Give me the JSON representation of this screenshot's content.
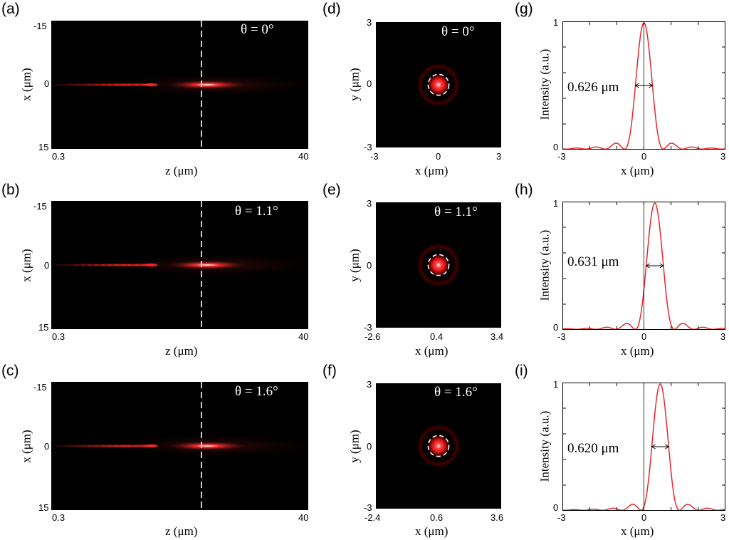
{
  "panels": {
    "a": {
      "letter": "(a)",
      "angle": "θ = 0°",
      "xtick_left": "0.3",
      "xtick_right": "40",
      "ytick_top": "-15",
      "ytick_mid": "0",
      "ytick_bot": "15",
      "xlabel": "z (μm)",
      "ylabel": "x (μm)"
    },
    "b": {
      "letter": "(b)",
      "angle": "θ = 1.1°",
      "xtick_left": "0.3",
      "xtick_right": "40",
      "ytick_top": "-15",
      "ytick_mid": "0",
      "ytick_bot": "15",
      "xlabel": "z (μm)",
      "ylabel": "x (μm)"
    },
    "c": {
      "letter": "(c)",
      "angle": "θ = 1.6°",
      "xtick_left": "0.3",
      "xtick_right": "40",
      "ytick_top": "-15",
      "ytick_mid": "0",
      "ytick_bot": "15",
      "xlabel": "z (μm)",
      "ylabel": "x (μm)"
    },
    "d": {
      "letter": "(d)",
      "angle": "θ = 0°",
      "xticks": [
        "-3",
        "0",
        "3"
      ],
      "yticks": [
        "3",
        "0",
        "-3"
      ],
      "xlabel": "x (μm)",
      "ylabel": "y (μm)"
    },
    "e": {
      "letter": "(e)",
      "angle": "θ = 1.1°",
      "xticks": [
        "-2.6",
        "0.4",
        "3.4"
      ],
      "yticks": [
        "3",
        "0",
        "-3"
      ],
      "xlabel": "x (μm)",
      "ylabel": "y (μm)"
    },
    "f": {
      "letter": "(f)",
      "angle": "θ = 1.6°",
      "xticks": [
        "-2.4",
        "0.6",
        "3.6"
      ],
      "yticks": [
        "3",
        "0",
        "-3"
      ],
      "xlabel": "x (μm)",
      "ylabel": "y (μm)"
    },
    "g": {
      "letter": "(g)",
      "fwhm": "0.626 μm",
      "xticks": [
        "-3",
        "0",
        "3"
      ],
      "yticks": [
        "1",
        "0"
      ],
      "xlabel": "x (μm)",
      "ylabel": "Intensity (a.u.)"
    },
    "h": {
      "letter": "(h)",
      "fwhm": "0.631 μm",
      "xticks": [
        "-3",
        "0",
        "3"
      ],
      "yticks": [
        "1",
        "0"
      ],
      "xlabel": "x (μm)",
      "ylabel": "Intensity (a.u.)"
    },
    "i": {
      "letter": "(i)",
      "fwhm": "0.620 μm",
      "xticks": [
        "-3",
        "0",
        "3"
      ],
      "yticks": [
        "1",
        "0"
      ],
      "xlabel": "x (μm)",
      "ylabel": "Intensity (a.u.)"
    }
  },
  "chart_data": [
    {
      "type": "heatmap",
      "panel": "a",
      "title": "θ = 0°",
      "xlabel": "z (μm)",
      "ylabel": "x (μm)",
      "xlim": [
        0.3,
        40
      ],
      "ylim": [
        -15,
        15
      ],
      "focal_z": 23.5,
      "colormap": "black-red-white"
    },
    {
      "type": "heatmap",
      "panel": "b",
      "title": "θ = 1.1°",
      "xlabel": "z (μm)",
      "ylabel": "x (μm)",
      "xlim": [
        0.3,
        40
      ],
      "ylim": [
        -15,
        15
      ],
      "focal_z": 23.5,
      "colormap": "black-red-white"
    },
    {
      "type": "heatmap",
      "panel": "c",
      "title": "θ = 1.6°",
      "xlabel": "z (μm)",
      "ylabel": "x (μm)",
      "xlim": [
        0.3,
        40
      ],
      "ylim": [
        -15,
        15
      ],
      "focal_z": 23.5,
      "colormap": "black-red-white"
    },
    {
      "type": "heatmap",
      "panel": "d",
      "title": "θ = 0°",
      "xlabel": "x (μm)",
      "ylabel": "y (μm)",
      "xlim": [
        -3,
        3
      ],
      "ylim": [
        -3,
        3
      ],
      "spot_center": [
        0,
        0
      ],
      "circle_radius": 0.6
    },
    {
      "type": "heatmap",
      "panel": "e",
      "title": "θ = 1.1°",
      "xlabel": "x (μm)",
      "ylabel": "y (μm)",
      "xlim": [
        -2.6,
        3.4
      ],
      "ylim": [
        -3,
        3
      ],
      "spot_center": [
        0.4,
        0
      ],
      "circle_radius": 0.6
    },
    {
      "type": "heatmap",
      "panel": "f",
      "title": "θ = 1.6°",
      "xlabel": "x (μm)",
      "ylabel": "y (μm)",
      "xlim": [
        -2.4,
        3.6
      ],
      "ylim": [
        -3,
        3
      ],
      "spot_center": [
        0.6,
        0
      ],
      "circle_radius": 0.6
    },
    {
      "type": "line",
      "panel": "g",
      "xlabel": "x (μm)",
      "ylabel": "Intensity (a.u.)",
      "xlim": [
        -3,
        3
      ],
      "ylim": [
        0,
        1
      ],
      "center": 0,
      "fwhm": 0.626,
      "annotation": "0.626 μm",
      "color": "#e8262a"
    },
    {
      "type": "line",
      "panel": "h",
      "xlabel": "x (μm)",
      "ylabel": "Intensity (a.u.)",
      "xlim": [
        -3,
        3
      ],
      "ylim": [
        0,
        1
      ],
      "center": 0.4,
      "fwhm": 0.631,
      "annotation": "0.631 μm",
      "color": "#e8262a"
    },
    {
      "type": "line",
      "panel": "i",
      "xlabel": "x (μm)",
      "ylabel": "Intensity (a.u.)",
      "xlim": [
        -3,
        3
      ],
      "ylim": [
        0,
        1
      ],
      "center": 0.6,
      "fwhm": 0.62,
      "annotation": "0.620 μm",
      "color": "#e8262a"
    }
  ]
}
